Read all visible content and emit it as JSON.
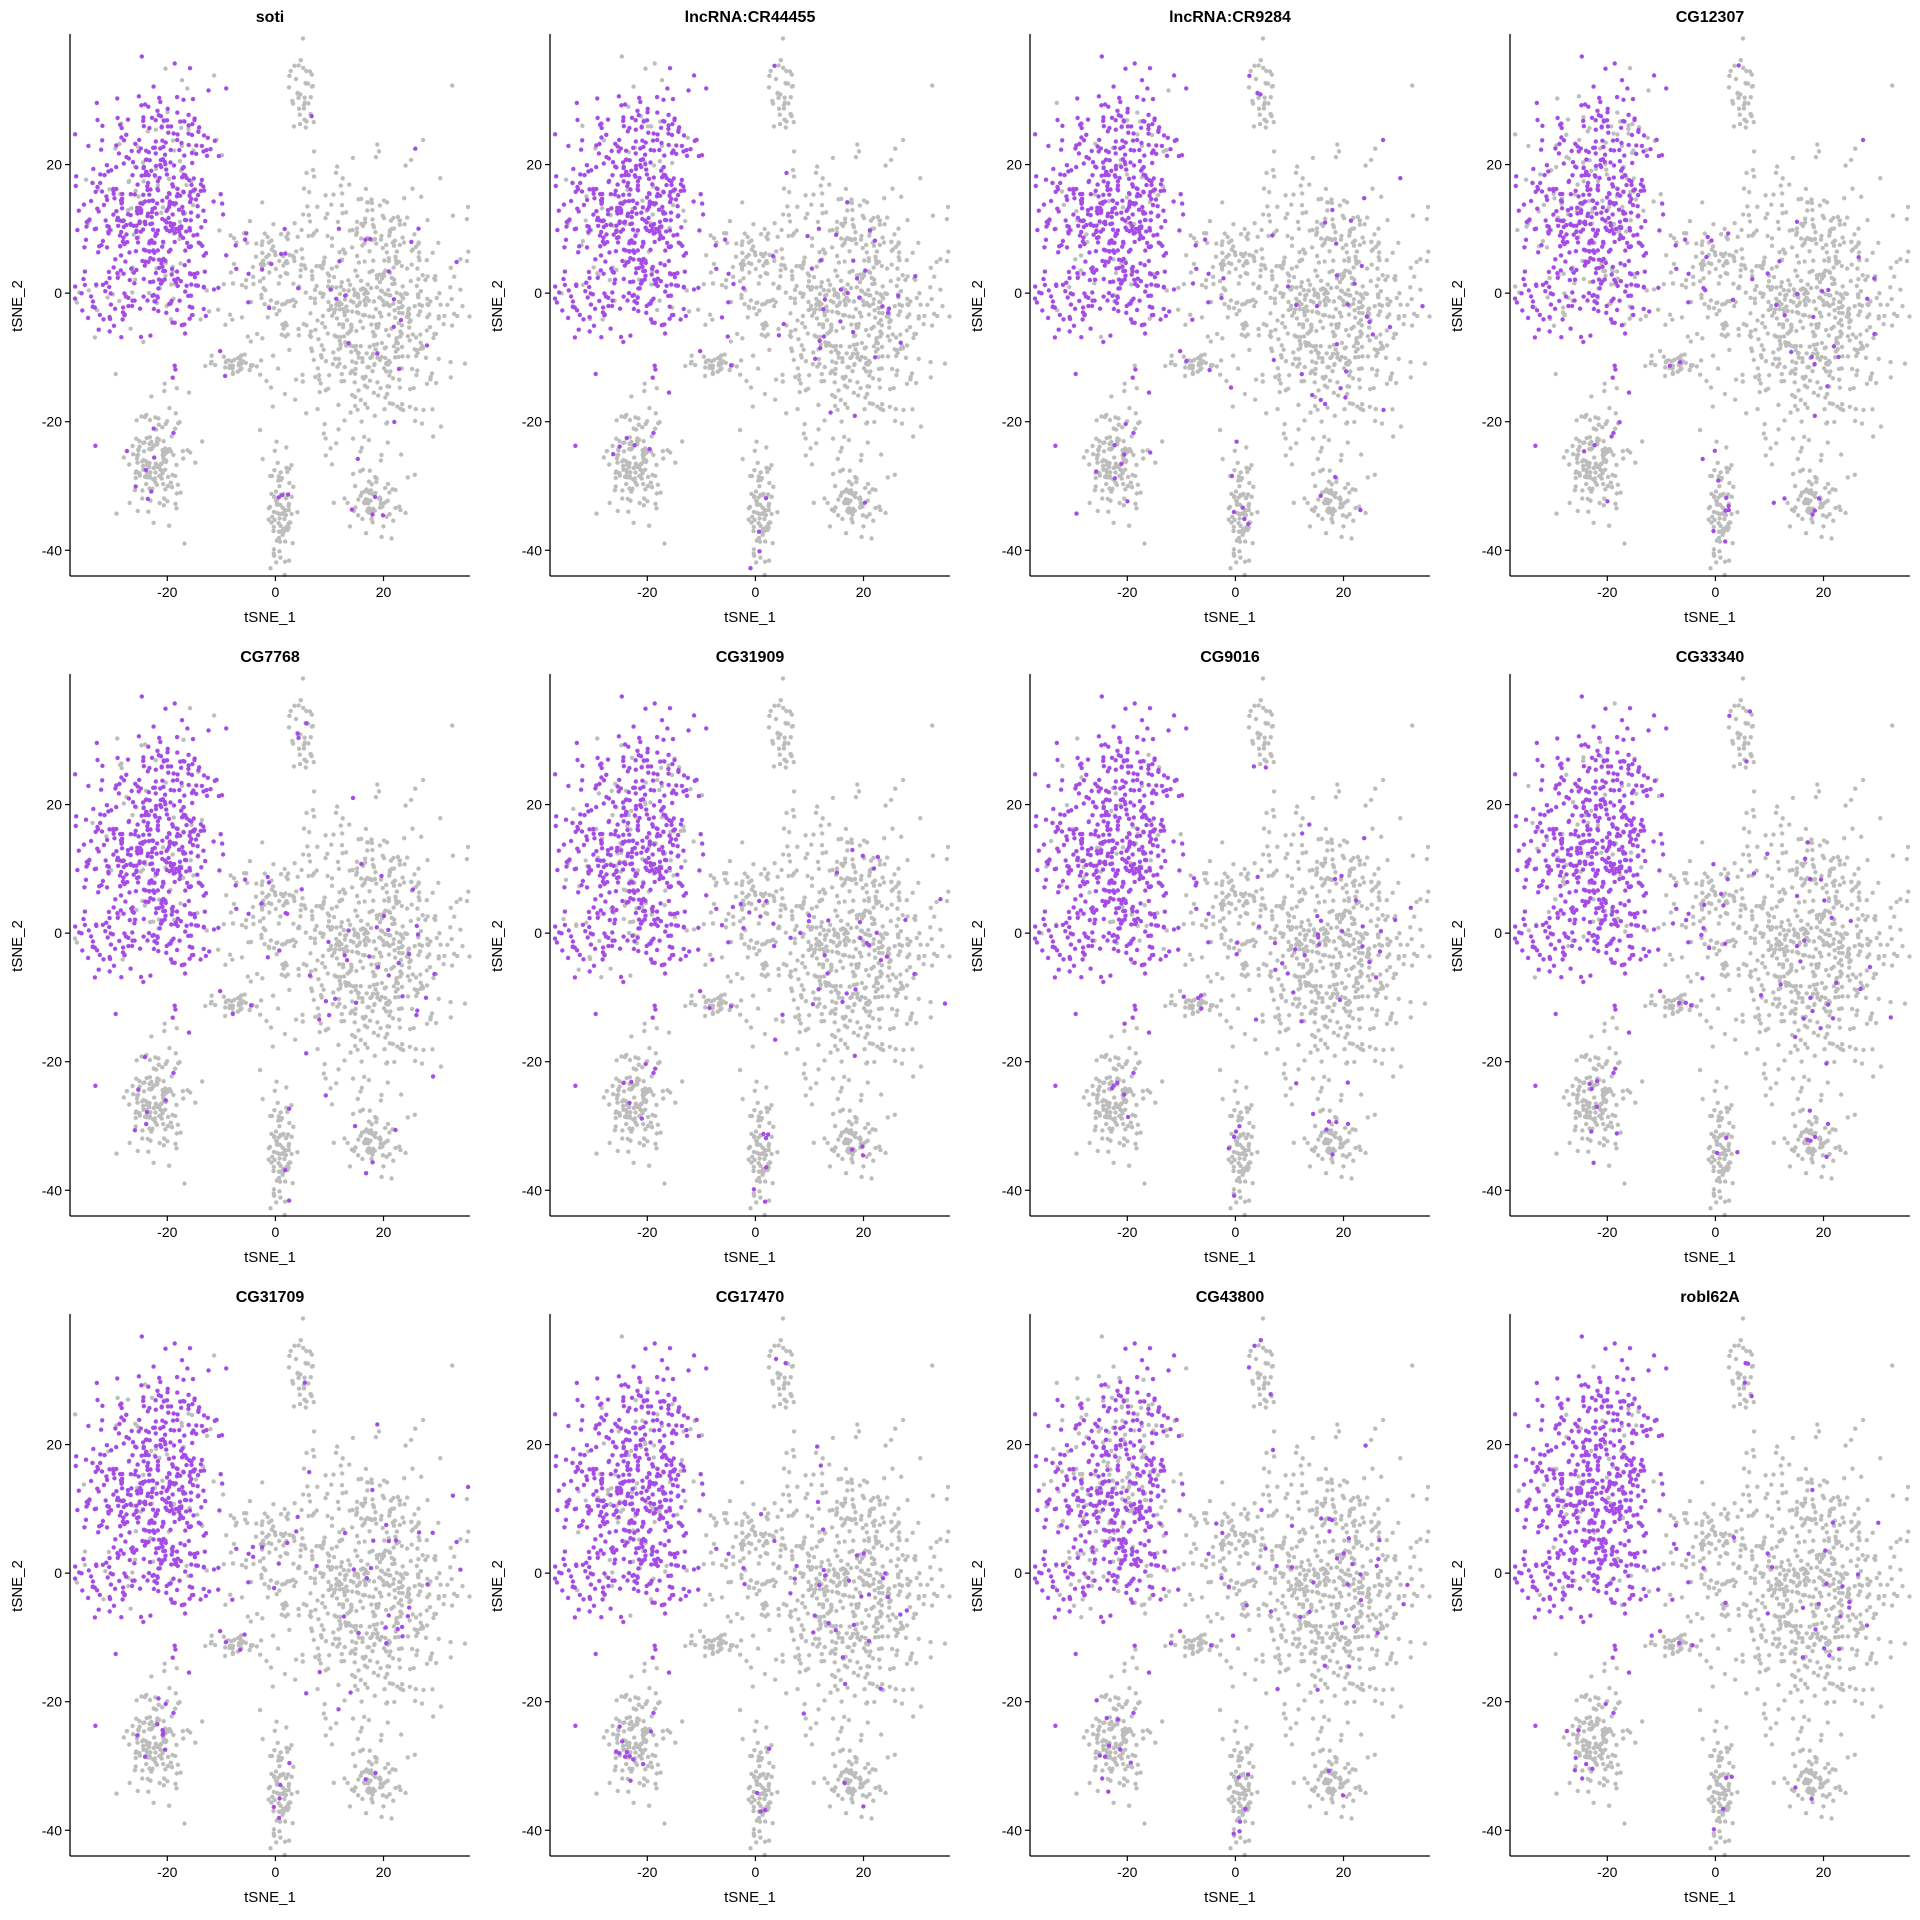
{
  "figure": {
    "colors": {
      "expressing": "#A64CE6",
      "background": "#BDBDBD",
      "axis": "#000000"
    }
  },
  "chart_data": [
    {
      "type": "scatter",
      "title": "soti",
      "xlabel": "tSNE_1",
      "ylabel": "tSNE_2",
      "xticks": [
        -20,
        0,
        20
      ],
      "yticks": [
        -40,
        -20,
        0,
        20
      ],
      "xlim": [
        -38,
        36
      ],
      "ylim": [
        -44,
        40
      ],
      "expression_level": 0.85
    },
    {
      "type": "scatter",
      "title": "lncRNA:CR44455",
      "xlabel": "tSNE_1",
      "ylabel": "tSNE_2",
      "xticks": [
        -20,
        0,
        20
      ],
      "yticks": [
        -40,
        -20,
        0,
        20
      ],
      "xlim": [
        -38,
        36
      ],
      "ylim": [
        -44,
        40
      ],
      "expression_level": 0.9
    },
    {
      "type": "scatter",
      "title": "lncRNA:CR9284",
      "xlabel": "tSNE_1",
      "ylabel": "tSNE_2",
      "xticks": [
        -20,
        0,
        20
      ],
      "yticks": [
        -40,
        -20,
        0,
        20
      ],
      "xlim": [
        -38,
        36
      ],
      "ylim": [
        -44,
        40
      ],
      "expression_level": 0.9
    },
    {
      "type": "scatter",
      "title": "CG12307",
      "xlabel": "tSNE_1",
      "ylabel": "tSNE_2",
      "xticks": [
        -20,
        0,
        20
      ],
      "yticks": [
        -40,
        -20,
        0,
        20
      ],
      "xlim": [
        -38,
        36
      ],
      "ylim": [
        -44,
        40
      ],
      "expression_level": 0.75
    },
    {
      "type": "scatter",
      "title": "CG7768",
      "xlabel": "tSNE_1",
      "ylabel": "tSNE_2",
      "xticks": [
        -20,
        0,
        20
      ],
      "yticks": [
        -40,
        -20,
        0,
        20
      ],
      "xlim": [
        -38,
        36
      ],
      "ylim": [
        -44,
        40
      ],
      "expression_level": 0.9
    },
    {
      "type": "scatter",
      "title": "CG31909",
      "xlabel": "tSNE_1",
      "ylabel": "tSNE_2",
      "xticks": [
        -20,
        0,
        20
      ],
      "yticks": [
        -40,
        -20,
        0,
        20
      ],
      "xlim": [
        -38,
        36
      ],
      "ylim": [
        -44,
        40
      ],
      "expression_level": 0.8
    },
    {
      "type": "scatter",
      "title": "CG9016",
      "xlabel": "tSNE_1",
      "ylabel": "tSNE_2",
      "xticks": [
        -20,
        0,
        20
      ],
      "yticks": [
        -40,
        -20,
        0,
        20
      ],
      "xlim": [
        -38,
        36
      ],
      "ylim": [
        -44,
        40
      ],
      "expression_level": 0.9
    },
    {
      "type": "scatter",
      "title": "CG33340",
      "xlabel": "tSNE_1",
      "ylabel": "tSNE_2",
      "xticks": [
        -20,
        0,
        20
      ],
      "yticks": [
        -40,
        -20,
        0,
        20
      ],
      "xlim": [
        -38,
        36
      ],
      "ylim": [
        -44,
        40
      ],
      "expression_level": 0.9
    },
    {
      "type": "scatter",
      "title": "CG31709",
      "xlabel": "tSNE_1",
      "ylabel": "tSNE_2",
      "xticks": [
        -20,
        0,
        20
      ],
      "yticks": [
        -40,
        -20,
        0,
        20
      ],
      "xlim": [
        -38,
        36
      ],
      "ylim": [
        -44,
        40
      ],
      "expression_level": 0.9
    },
    {
      "type": "scatter",
      "title": "CG17470",
      "xlabel": "tSNE_1",
      "ylabel": "tSNE_2",
      "xticks": [
        -20,
        0,
        20
      ],
      "yticks": [
        -40,
        -20,
        0,
        20
      ],
      "xlim": [
        -38,
        36
      ],
      "ylim": [
        -44,
        40
      ],
      "expression_level": 0.85
    },
    {
      "type": "scatter",
      "title": "CG43800",
      "xlabel": "tSNE_1",
      "ylabel": "tSNE_2",
      "xticks": [
        -20,
        0,
        20
      ],
      "yticks": [
        -40,
        -20,
        0,
        20
      ],
      "xlim": [
        -38,
        36
      ],
      "ylim": [
        -44,
        40
      ],
      "expression_level": 0.7
    },
    {
      "type": "scatter",
      "title": "robl62A",
      "xlabel": "tSNE_1",
      "ylabel": "tSNE_2",
      "xticks": [
        -20,
        0,
        20
      ],
      "yticks": [
        -40,
        -20,
        0,
        20
      ],
      "xlim": [
        -38,
        36
      ],
      "ylim": [
        -44,
        40
      ],
      "expression_level": 0.9
    }
  ],
  "cell_clusters": [
    {
      "cx": -24,
      "cy": 14,
      "sx": 6.0,
      "sy": 9.0,
      "n": 420,
      "hot": true
    },
    {
      "cx": -16,
      "cy": 12,
      "sx": 3.2,
      "sy": 10.0,
      "n": 120,
      "hot": true
    },
    {
      "cx": -26,
      "cy": -1,
      "sx": 7.0,
      "sy": 3.0,
      "n": 90,
      "hot": true
    },
    {
      "cx": -2,
      "cy": 4,
      "sx": 3.0,
      "sy": 3.0,
      "n": 60,
      "hot": false
    },
    {
      "cx": 17,
      "cy": -2,
      "sx": 9.5,
      "sy": 10.0,
      "n": 700,
      "hot": false
    },
    {
      "cx": -8,
      "cy": -11,
      "sx": 3.0,
      "sy": 0.8,
      "n": 40,
      "hot": false
    },
    {
      "cx": -22,
      "cy": -26,
      "sx": 2.5,
      "sy": 4.5,
      "n": 160,
      "hot": false
    },
    {
      "cx": 1,
      "cy": -34,
      "sx": 1.2,
      "sy": 4.0,
      "n": 90,
      "hot": false
    },
    {
      "cx": 18,
      "cy": -32,
      "sx": 2.4,
      "sy": 2.5,
      "n": 80,
      "hot": false
    },
    {
      "cx": 5,
      "cy": 31,
      "sx": 1.2,
      "sy": 3.0,
      "n": 40,
      "hot": false
    }
  ]
}
